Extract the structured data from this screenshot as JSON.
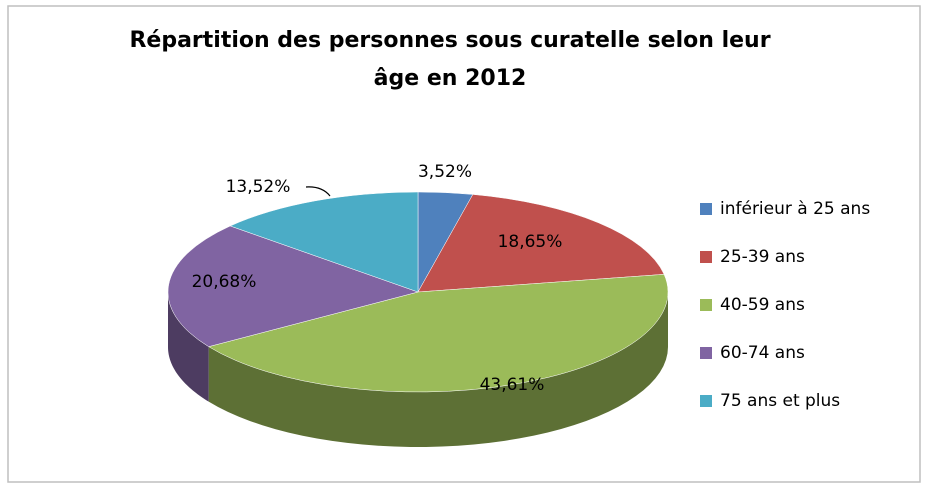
{
  "chart_data": {
    "type": "pie3d",
    "title": "Répartition des personnes sous curatelle selon leur\nâge en 2012",
    "categories": [
      "inférieur à 25 ans",
      "25-39 ans",
      "40-59 ans",
      "60-74 ans",
      "75 ans et plus"
    ],
    "values": [
      3.52,
      18.65,
      43.61,
      20.68,
      13.52
    ],
    "value_labels": [
      "3,52%",
      "18,65%",
      "43,61%",
      "20,68%",
      "13,52%"
    ],
    "colors": [
      "#4f81bd",
      "#c0504d",
      "#9bbb59",
      "#8064a2",
      "#4bacc6"
    ],
    "legend": "right"
  }
}
